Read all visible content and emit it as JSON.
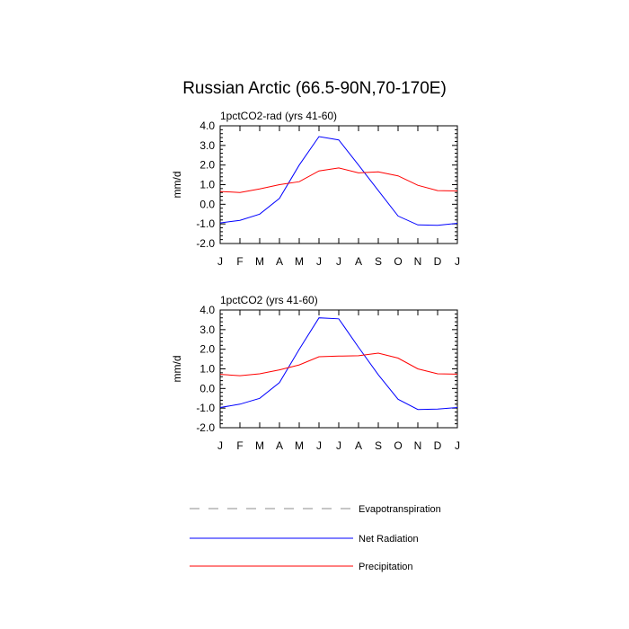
{
  "figure": {
    "title": "Russian Arctic (66.5-90N,70-170E)"
  },
  "legend": {
    "items": [
      {
        "label": "Evapotranspiration",
        "color": "#8c8c8c",
        "dash": "dashed"
      },
      {
        "label": "Net Radiation",
        "color": "#0000ff",
        "dash": "solid"
      },
      {
        "label": "Precipitation",
        "color": "#ff0000",
        "dash": "solid"
      }
    ]
  },
  "chart_data": [
    {
      "type": "line",
      "title": "1pctCO2-rad (yrs 41-60)",
      "ylabel": "mm/d",
      "categories": [
        "J",
        "F",
        "M",
        "A",
        "M",
        "J",
        "J",
        "A",
        "S",
        "O",
        "N",
        "D",
        "J"
      ],
      "ylim": [
        -2.0,
        4.0
      ],
      "yticks": [
        "-2.0",
        "-1.0",
        "0.0",
        "1.0",
        "2.0",
        "3.0",
        "4.0"
      ],
      "series": [
        {
          "name": "Net Radiation",
          "color": "#0000ff",
          "values": [
            -0.95,
            -0.82,
            -0.5,
            0.3,
            2.0,
            3.45,
            3.28,
            2.0,
            0.7,
            -0.6,
            -1.05,
            -1.07,
            -0.97
          ]
        },
        {
          "name": "Precipitation",
          "color": "#ff0000",
          "values": [
            0.65,
            0.6,
            0.78,
            1.0,
            1.15,
            1.7,
            1.85,
            1.6,
            1.65,
            1.45,
            0.97,
            0.7,
            0.68
          ]
        }
      ]
    },
    {
      "type": "line",
      "title": "1pctCO2 (yrs 41-60)",
      "ylabel": "mm/d",
      "categories": [
        "J",
        "F",
        "M",
        "A",
        "M",
        "J",
        "J",
        "A",
        "S",
        "O",
        "N",
        "D",
        "J"
      ],
      "ylim": [
        -2.0,
        4.0
      ],
      "yticks": [
        "-2.0",
        "-1.0",
        "0.0",
        "1.0",
        "2.0",
        "3.0",
        "4.0"
      ],
      "series": [
        {
          "name": "Net Radiation",
          "color": "#0000ff",
          "values": [
            -0.97,
            -0.8,
            -0.5,
            0.3,
            2.0,
            3.6,
            3.55,
            2.1,
            0.7,
            -0.55,
            -1.07,
            -1.05,
            -0.97
          ]
        },
        {
          "name": "Precipitation",
          "color": "#ff0000",
          "values": [
            0.72,
            0.65,
            0.75,
            0.95,
            1.2,
            1.62,
            1.65,
            1.67,
            1.8,
            1.55,
            1.0,
            0.75,
            0.73
          ]
        }
      ]
    }
  ]
}
